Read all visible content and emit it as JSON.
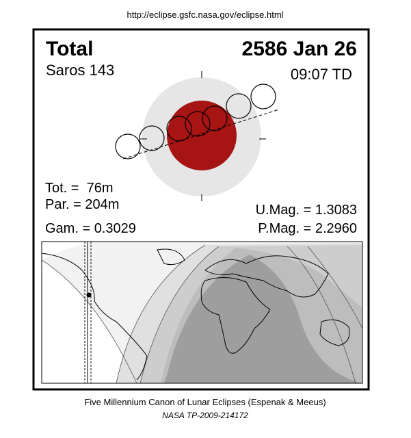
{
  "header": {
    "url": "http://eclipse.gsfc.nasa.gov/eclipse.html"
  },
  "panel": {
    "type": "Total",
    "date": "2586 Jan 26",
    "saros": "Saros 143",
    "time": "09:07 TD",
    "stats": {
      "tot": "Tot. =  76m",
      "par": "Par. = 204m",
      "gam": "Gam. = 0.3029",
      "umag": "U.Mag. = 1.3083",
      "pmag": "P.Mag. = 2.2960"
    }
  },
  "footer": {
    "line1": "Five Millennium Canon of Lunar Eclipses (Espenak & Meeus)",
    "line2": "NASA TP-2009-214172"
  }
}
